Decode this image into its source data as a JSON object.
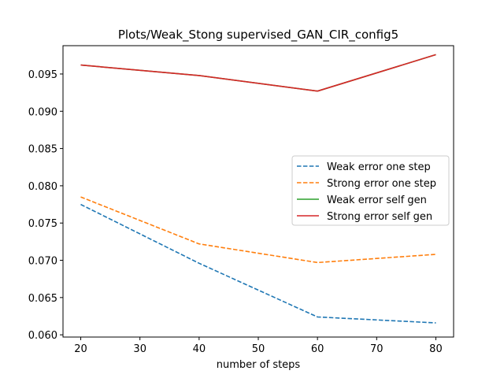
{
  "chart_data": {
    "type": "line",
    "title": "Plots/Weak_Stong supervised_GAN_CIR_config5",
    "xlabel": "number of steps",
    "ylabel": "",
    "x": [
      20,
      40,
      60,
      80
    ],
    "xlim": [
      17,
      83
    ],
    "ylim": [
      0.0597,
      0.0988
    ],
    "xticks": [
      20,
      30,
      40,
      50,
      60,
      70,
      80
    ],
    "xtick_labels": [
      "20",
      "30",
      "40",
      "50",
      "60",
      "70",
      "80"
    ],
    "yticks": [
      0.06,
      0.065,
      0.07,
      0.075,
      0.08,
      0.085,
      0.09,
      0.095
    ],
    "ytick_labels": [
      "0.060",
      "0.065",
      "0.070",
      "0.075",
      "0.080",
      "0.085",
      "0.090",
      "0.095"
    ],
    "grid": false,
    "legend_position": "center-right",
    "series": [
      {
        "name": "Weak error one step",
        "values": [
          0.0775,
          0.0696,
          0.0624,
          0.0616
        ],
        "color": "#1f77b4",
        "style": "dashed"
      },
      {
        "name": "Strong error one step",
        "values": [
          0.0785,
          0.0722,
          0.0697,
          0.0708
        ],
        "color": "#ff7f0e",
        "style": "dashed"
      },
      {
        "name": "Weak error self gen",
        "values": [
          0.0962,
          0.0948,
          0.0927,
          0.0976
        ],
        "color": "#2ca02c",
        "style": "solid"
      },
      {
        "name": "Strong error self gen",
        "values": [
          0.0962,
          0.0948,
          0.0927,
          0.0976
        ],
        "color": "#d62728",
        "style": "solid"
      }
    ]
  }
}
